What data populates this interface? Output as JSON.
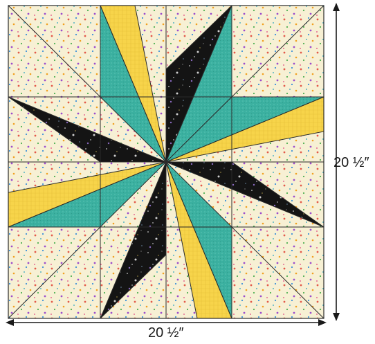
{
  "dimensions": {
    "width_label": "20 ½″",
    "height_label": "20 ½″"
  },
  "colors": {
    "background_print": "#f7f0d4",
    "yellow_print": "#f7d44a",
    "teal_print": "#3bb0a0",
    "black_print": "#141414",
    "seam_line": "#2a2a2a",
    "arrow": "#1a1a1a"
  }
}
